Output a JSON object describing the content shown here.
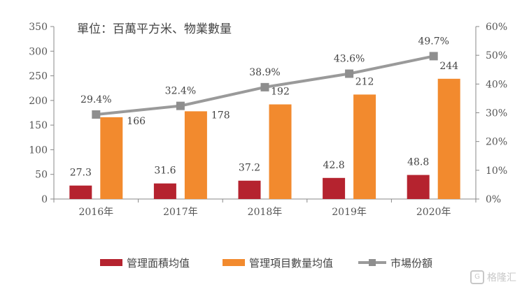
{
  "chart_data": {
    "type": "bar-line-combo",
    "title": "單位：百萬平方米、物業數量",
    "categories": [
      "2016年",
      "2017年",
      "2018年",
      "2019年",
      "2020年"
    ],
    "series": [
      {
        "name": "管理面積均值",
        "type": "bar",
        "axis": "left",
        "color": "#b5232f",
        "values": [
          27.3,
          31.6,
          37.2,
          42.8,
          48.8
        ],
        "labels": [
          "27.3",
          "31.6",
          "37.2",
          "42.8",
          "48.8"
        ]
      },
      {
        "name": "管理項目數量均值",
        "type": "bar",
        "axis": "left",
        "color": "#f28a2e",
        "values": [
          166,
          178,
          192,
          212,
          244
        ],
        "labels": [
          "166",
          "178",
          "192",
          "212",
          "244"
        ]
      },
      {
        "name": "市場份額",
        "type": "line",
        "axis": "right",
        "color": "#9a9a9a",
        "values": [
          29.4,
          32.4,
          38.9,
          43.6,
          49.7
        ],
        "labels": [
          "29.4%",
          "32.4%",
          "38.9%",
          "43.6%",
          "49.7%"
        ]
      }
    ],
    "y_left": {
      "min": 0,
      "max": 350,
      "ticks": [
        "0",
        "50",
        "100",
        "150",
        "200",
        "250",
        "300",
        "350"
      ]
    },
    "y_right": {
      "min": 0,
      "max": 60,
      "ticks": [
        "0%",
        "10%",
        "20%",
        "30%",
        "40%",
        "50%",
        "60%"
      ]
    },
    "grid": false,
    "legend_position": "bottom"
  },
  "watermark": {
    "text": "格隆汇",
    "logo": "G"
  }
}
